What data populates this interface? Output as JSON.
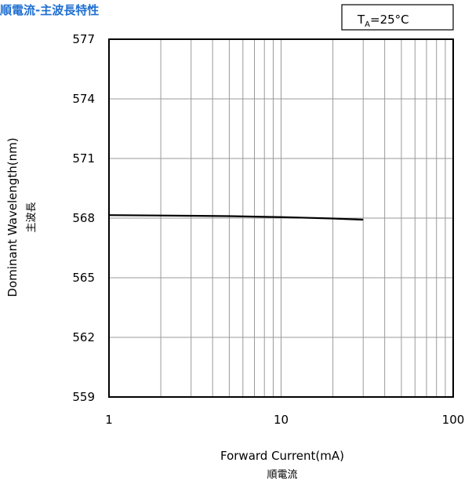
{
  "chart_data": {
    "type": "line",
    "title": "順電流-主波長特性",
    "condition": {
      "symbol": "T",
      "subscript": "A",
      "value": "=25°C"
    },
    "xlabel": "Forward Current(mA)",
    "xlabel_sub": "順電流",
    "ylabel": "Dominant Wavelength(nm)",
    "ylabel_sub": "主波長",
    "xscale": "log",
    "xlim": [
      1,
      100
    ],
    "ylim": [
      559,
      577
    ],
    "xticks": [
      1,
      10,
      100
    ],
    "xtick_labels": [
      "1",
      "10",
      "100"
    ],
    "yticks": [
      559,
      562,
      565,
      568,
      571,
      574,
      577
    ],
    "ytick_labels": [
      "559",
      "562",
      "565",
      "568",
      "571",
      "574",
      "577"
    ],
    "grid": true,
    "series": [
      {
        "x": [
          1,
          2,
          5,
          10,
          20,
          30
        ],
        "y": [
          568.15,
          568.13,
          568.1,
          568.05,
          567.98,
          567.92
        ]
      }
    ]
  }
}
